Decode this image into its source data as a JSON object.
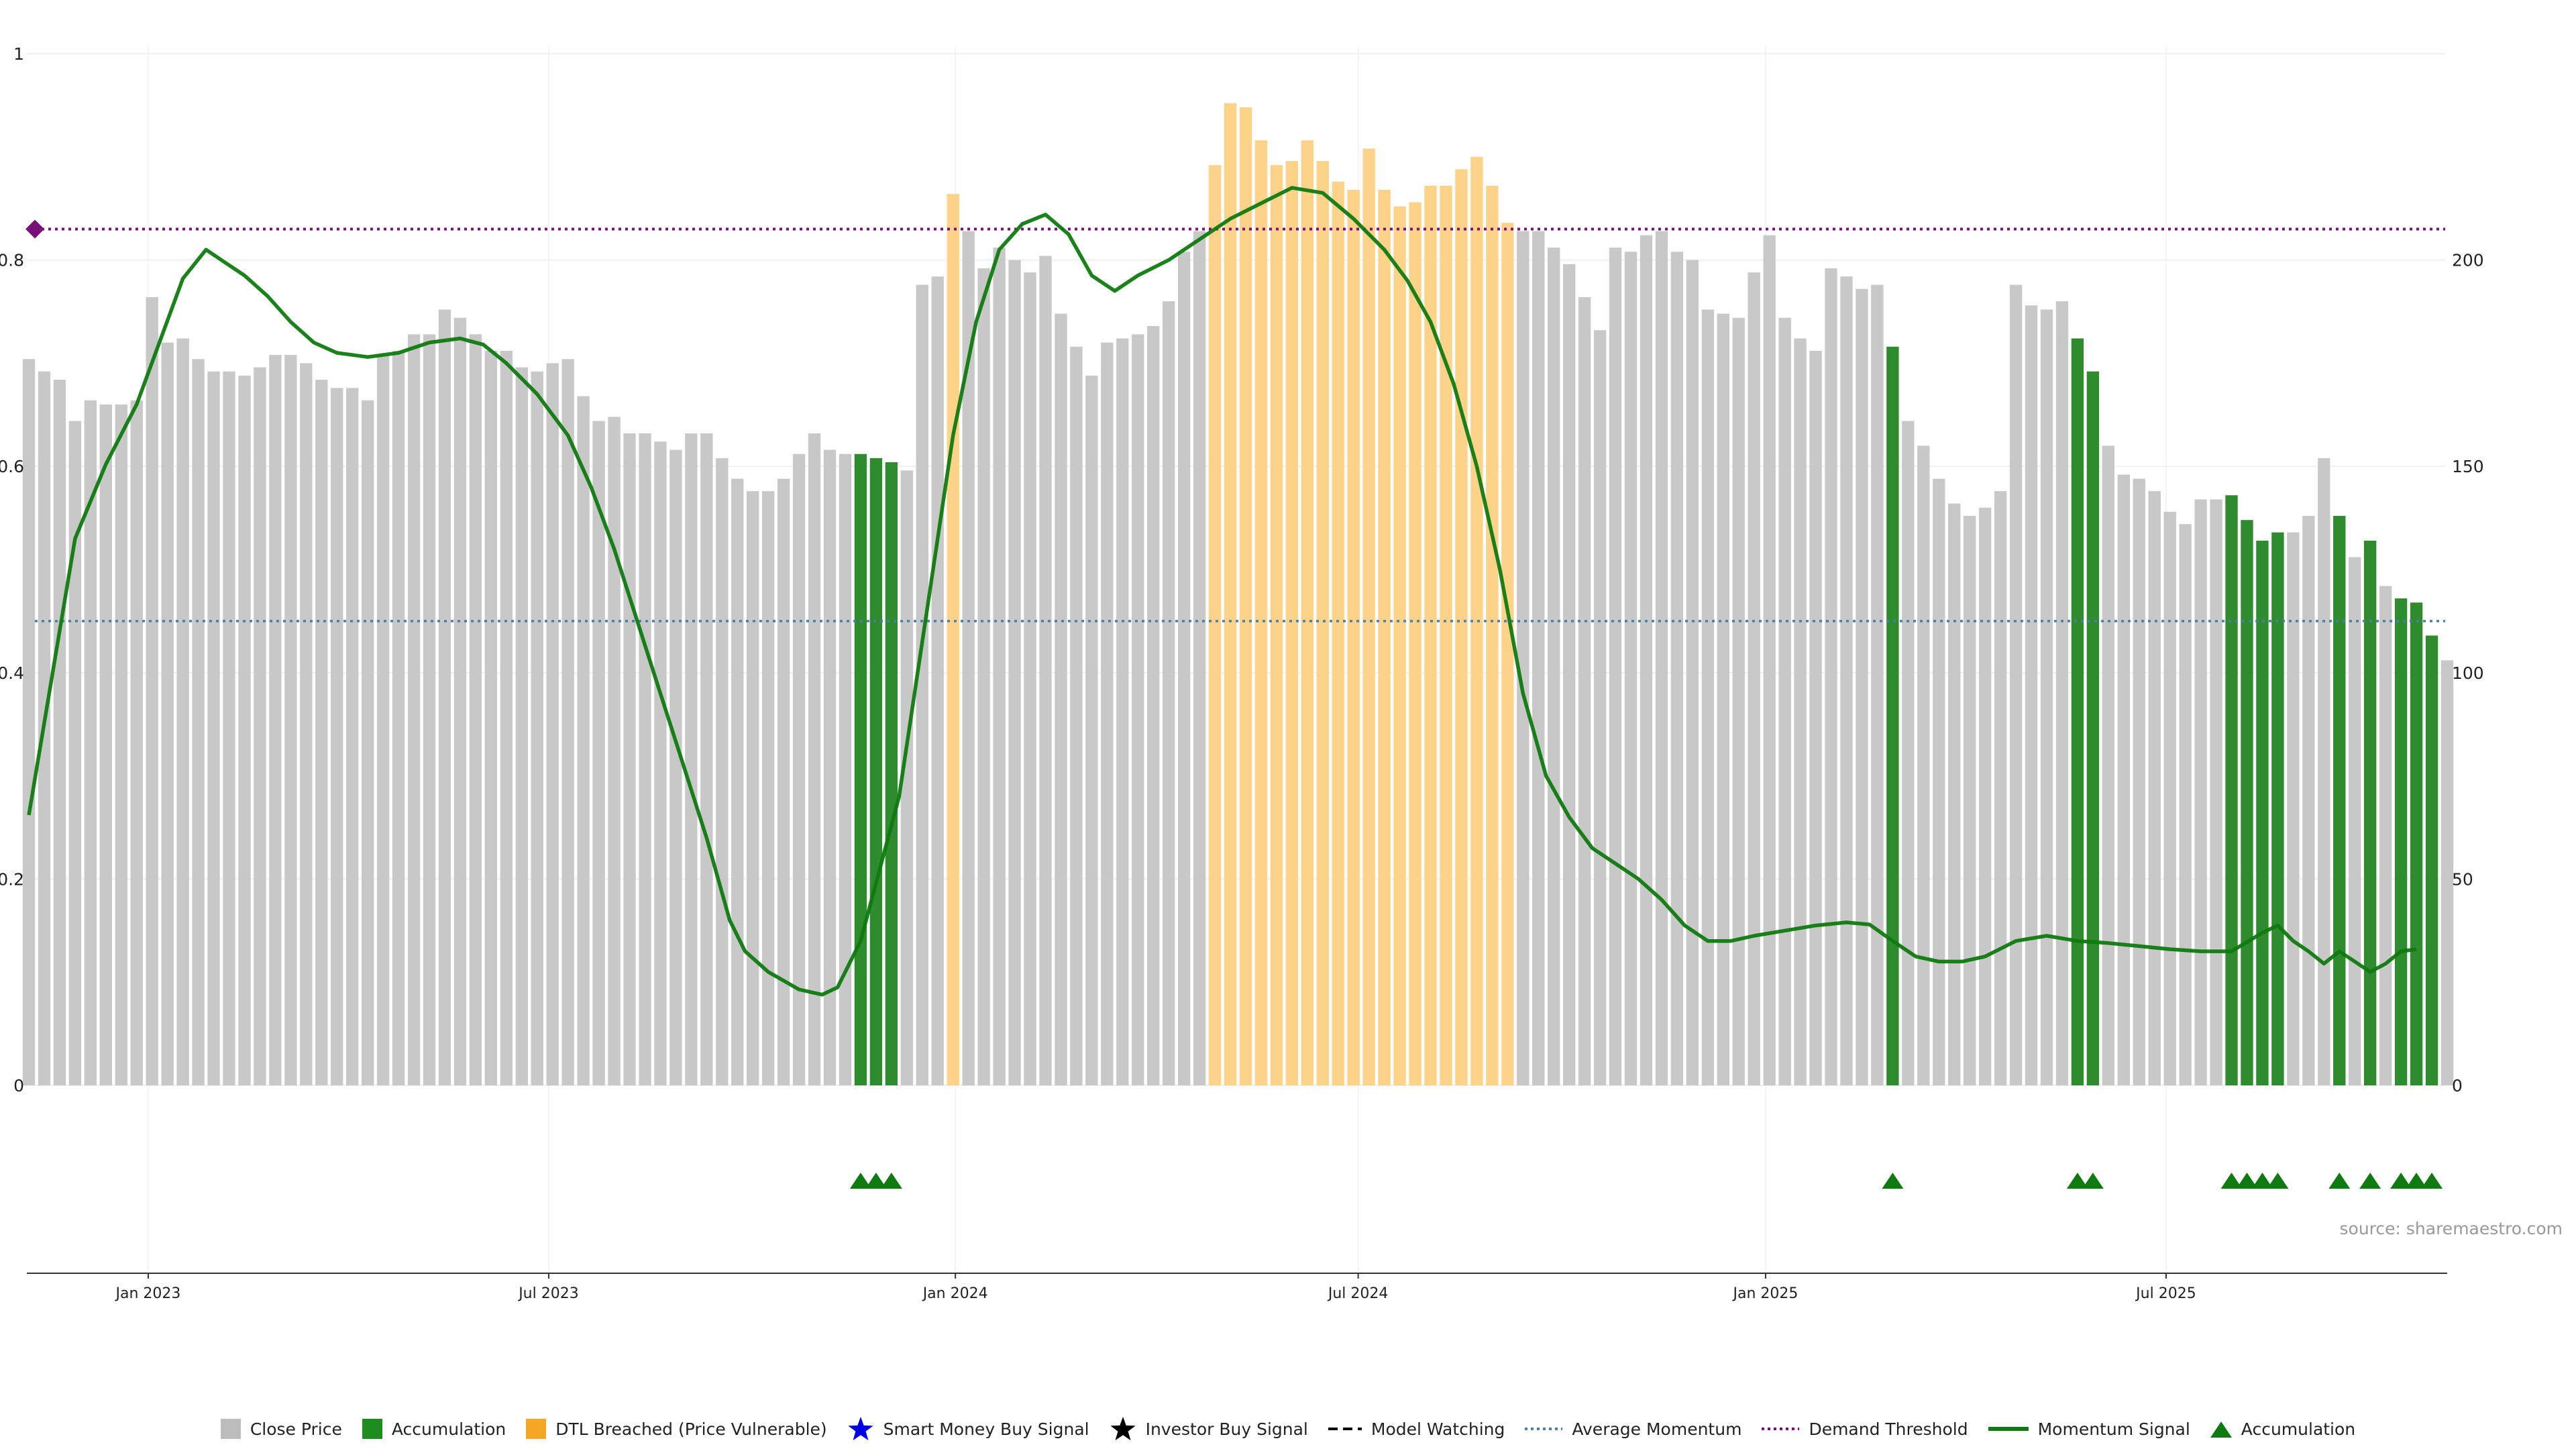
{
  "chart_data": {
    "type": "bar",
    "title": "",
    "xlabel": "",
    "ylabel": "",
    "left_axis": {
      "ylim": [
        0,
        1
      ],
      "ticks": [
        "0",
        "0.2",
        "0.4",
        "0.6",
        "0.8",
        "1"
      ]
    },
    "right_axis": {
      "ylim": [
        0,
        250
      ],
      "ticks": [
        "0",
        "50",
        "100",
        "150",
        "200"
      ]
    },
    "x_ticks": [
      "Jan 2023",
      "Jul 2023",
      "Jan 2024",
      "Jul 2024",
      "Jan 2025",
      "Jul 2025"
    ],
    "x_tick_weeks": [
      7.75,
      33.75,
      60.15,
      86.3,
      112.75,
      138.75
    ],
    "close_price": [
      176,
      173,
      171,
      161,
      166,
      165,
      165,
      166,
      191,
      180,
      181,
      176,
      173,
      173,
      172,
      174,
      177,
      177,
      175,
      171,
      169,
      169,
      166,
      177,
      178,
      182,
      182,
      188,
      186,
      182,
      178,
      178,
      174,
      173,
      175,
      176,
      167,
      161,
      162,
      158,
      158,
      156,
      154,
      158,
      158,
      152,
      147,
      144,
      144,
      147,
      153,
      158,
      154,
      153,
      153,
      152,
      151,
      149,
      194,
      196,
      216,
      207,
      198,
      203,
      200,
      197,
      201,
      187,
      179,
      172,
      180,
      181,
      182,
      184,
      190,
      202,
      207,
      223,
      238,
      237,
      229,
      223,
      224,
      229,
      224,
      219,
      217,
      227,
      217,
      213,
      214,
      218,
      218,
      222,
      225,
      218,
      209,
      207,
      207,
      203,
      199,
      191,
      183,
      203,
      202,
      206,
      207,
      202,
      200,
      188,
      187,
      186,
      197,
      206,
      186,
      181,
      178,
      198,
      196,
      193,
      194,
      179,
      161,
      155,
      147,
      141,
      138,
      140,
      144,
      194,
      189,
      188,
      190,
      181,
      173,
      155,
      148,
      147,
      144,
      139,
      136,
      142,
      142,
      143,
      137,
      132,
      134,
      134,
      138,
      152,
      138,
      128,
      132,
      121,
      118,
      117,
      109,
      103
    ],
    "dtl_breached_weeks": [
      60,
      77,
      78,
      79,
      80,
      81,
      82,
      83,
      84,
      85,
      86,
      87,
      88,
      89,
      90,
      91,
      92,
      93,
      94,
      95,
      96
    ],
    "accumulation_weeks": [
      54,
      55,
      56,
      121,
      133,
      134,
      143,
      144,
      145,
      146,
      150,
      152,
      154,
      155,
      156
    ],
    "accumulation_label_series": "Accumulation",
    "momentum_signal": [
      0.262,
      0.53,
      0.602,
      0.66,
      0.782,
      0.81,
      0.8,
      0.785,
      0.765,
      0.74,
      0.72,
      0.71,
      0.706,
      0.71,
      0.72,
      0.724,
      0.718,
      0.7,
      0.67,
      0.63,
      0.58,
      0.52,
      0.45,
      0.38,
      0.31,
      0.24,
      0.16,
      0.13,
      0.11,
      0.093,
      0.088,
      0.095,
      0.14,
      0.28,
      0.48,
      0.63,
      0.74,
      0.81,
      0.835,
      0.844,
      0.825,
      0.785,
      0.77,
      0.785,
      0.8,
      0.82,
      0.84,
      0.855,
      0.87,
      0.865,
      0.84,
      0.81,
      0.78,
      0.74,
      0.68,
      0.6,
      0.5,
      0.38,
      0.3,
      0.26,
      0.23,
      0.215,
      0.2,
      0.18,
      0.155,
      0.14,
      0.14,
      0.145,
      0.15,
      0.155,
      0.158,
      0.156,
      0.14,
      0.125,
      0.12,
      0.12,
      0.125,
      0.14,
      0.145,
      0.14,
      0.138,
      0.135,
      0.132,
      0.13,
      0.13,
      0.148,
      0.155,
      0.14,
      0.13,
      0.118,
      0.13,
      0.12,
      0.11,
      0.118,
      0.13,
      0.132
    ],
    "momentum_x_weeks": [
      0,
      3,
      5,
      7,
      10,
      11.5,
      12.5,
      14,
      15.5,
      17,
      18.5,
      20,
      22,
      24,
      26,
      28,
      29.5,
      31,
      33,
      35,
      36.5,
      38,
      39.5,
      41,
      42.5,
      44,
      45.5,
      46.5,
      48,
      50,
      51.5,
      52.5,
      54,
      56.5,
      58.5,
      60,
      61.5,
      63,
      64.5,
      66,
      67.5,
      69,
      70.5,
      72,
      74,
      76,
      78,
      80,
      82,
      84,
      86,
      88,
      89.5,
      91,
      92.5,
      94,
      95.5,
      97,
      98.5,
      100,
      101.5,
      103,
      104.5,
      106,
      107.5,
      109,
      110.5,
      112,
      114,
      116,
      118,
      119.5,
      121,
      122.5,
      124,
      125.5,
      127,
      129,
      131,
      133,
      135,
      137,
      139,
      141,
      143,
      145,
      146,
      147,
      148,
      149,
      150,
      151,
      152,
      153,
      154,
      155
    ],
    "average_momentum": 0.45,
    "demand_threshold": 0.83,
    "source": "source: sharemaestro.com"
  },
  "legend": [
    {
      "label": "Close Price",
      "icon": "grey-square",
      "color": "#bdbdbd"
    },
    {
      "label": "Accumulation",
      "icon": "green-square",
      "color": "#1f8c1f"
    },
    {
      "label": "DTL Breached (Price Vulnerable)",
      "icon": "orange-square",
      "color": "#f5a623"
    },
    {
      "label": "Smart Money Buy Signal",
      "icon": "blue-star",
      "color": "#0000e6"
    },
    {
      "label": "Investor Buy Signal",
      "icon": "black-star",
      "color": "#000000"
    },
    {
      "label": "Model Watching",
      "icon": "dashed-line",
      "color": "#000000"
    },
    {
      "label": "Average Momentum",
      "icon": "dotted-line",
      "color": "#4a7fa3"
    },
    {
      "label": "Demand Threshold",
      "icon": "dotted-line",
      "color": "#7a0f7a"
    },
    {
      "label": "Momentum Signal",
      "icon": "solid-line",
      "color": "#0f7a0f"
    },
    {
      "label": "Accumulation",
      "icon": "green-triangle",
      "color": "#0f7a0f"
    }
  ],
  "colors": {
    "close": "#c8c8c8",
    "accumulation": "#2e8b2e",
    "dtl": "#fdd38a",
    "momentum": "#0f7a0f",
    "average": "#4a7fa3",
    "threshold": "#7a0f7a",
    "triangle": "#0f7a0f"
  }
}
